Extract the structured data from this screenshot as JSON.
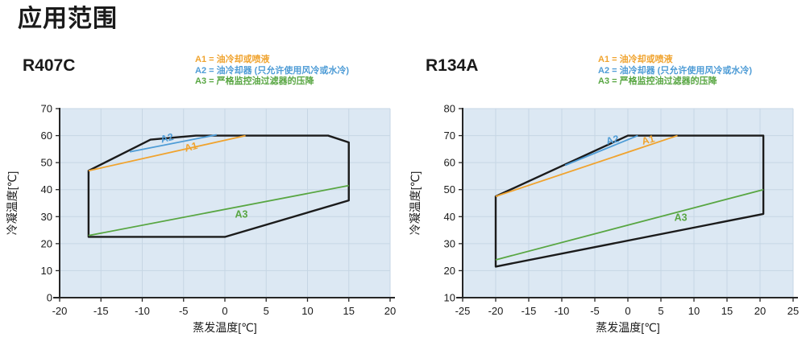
{
  "page_title": "应用范围",
  "colors": {
    "a1": "#F0A32E",
    "a2": "#4E9CD6",
    "a3": "#58A642",
    "envelope": "#1B1B1B",
    "plot_bg": "#DCE8F3",
    "grid": "#C6D6E4",
    "axis": "#262626",
    "text": "#1A1A1A"
  },
  "legend": {
    "items": [
      {
        "text": "A1 = 油冷却或喷液",
        "color": "a1"
      },
      {
        "text": "A2 = 油冷却器 (只允许使用风冷或水冷)",
        "color": "a2"
      },
      {
        "text": "A3 = 严格监控油过滤器的压降",
        "color": "a3"
      }
    ]
  },
  "chart_data": [
    {
      "type": "line",
      "title": "R407C",
      "xlabel": "蒸发温度[℃]",
      "ylabel": "冷凝温度[℃]",
      "xlim": [
        -20,
        20
      ],
      "ylim": [
        0,
        70
      ],
      "xticks": [
        -20,
        -15,
        -10,
        -5,
        0,
        5,
        10,
        15,
        20
      ],
      "yticks": [
        0,
        10,
        20,
        30,
        40,
        50,
        60,
        70
      ],
      "grid": true,
      "envelope": [
        [
          -16.5,
          47
        ],
        [
          -9,
          58.5
        ],
        [
          -3.5,
          60
        ],
        [
          12.5,
          60
        ],
        [
          15,
          57.5
        ],
        [
          15,
          36
        ],
        [
          0,
          22.5
        ],
        [
          -16.5,
          22.5
        ]
      ],
      "series": [
        {
          "name": "A1",
          "color": "a1",
          "points": [
            [
              -16.5,
              47
            ],
            [
              2.5,
              60
            ]
          ],
          "label_at": [
            -4,
            54.6
          ],
          "label_angle": -15
        },
        {
          "name": "A2",
          "color": "a2",
          "points": [
            [
              -11.5,
              54
            ],
            [
              -1,
              60.3
            ]
          ],
          "label_at": [
            -6.9,
            57.9
          ],
          "label_angle": -15
        },
        {
          "name": "A3",
          "color": "a3",
          "points": [
            [
              -16.5,
              23
            ],
            [
              15,
              41.5
            ]
          ],
          "label_at": [
            2,
            29.6
          ],
          "label_angle": 0
        }
      ]
    },
    {
      "type": "line",
      "title": "R134A",
      "xlabel": "蒸发温度[℃]",
      "ylabel": "冷凝温度[℃]",
      "xlim": [
        -25,
        25
      ],
      "ylim": [
        10,
        80
      ],
      "xticks": [
        -25,
        -20,
        -15,
        -10,
        -5,
        0,
        5,
        10,
        15,
        20,
        25
      ],
      "yticks": [
        10,
        20,
        30,
        40,
        50,
        60,
        70,
        80
      ],
      "grid": true,
      "envelope": [
        [
          -20,
          47.5
        ],
        [
          0,
          70
        ],
        [
          20.5,
          70
        ],
        [
          20.5,
          41
        ],
        [
          -20,
          21.5
        ]
      ],
      "series": [
        {
          "name": "A1",
          "color": "a1",
          "points": [
            [
              -20,
              47.5
            ],
            [
              7.5,
              70
            ]
          ],
          "label_at": [
            3.2,
            67.2
          ],
          "label_angle": -15
        },
        {
          "name": "A2",
          "color": "a2",
          "points": [
            [
              -9.5,
              59
            ],
            [
              1.5,
              70
            ]
          ],
          "label_at": [
            -2.2,
            67.2
          ],
          "label_angle": -15
        },
        {
          "name": "A3",
          "color": "a3",
          "points": [
            [
              -20,
              24
            ],
            [
              20.5,
              50
            ]
          ],
          "label_at": [
            8,
            38.4
          ],
          "label_angle": 0
        }
      ]
    }
  ]
}
